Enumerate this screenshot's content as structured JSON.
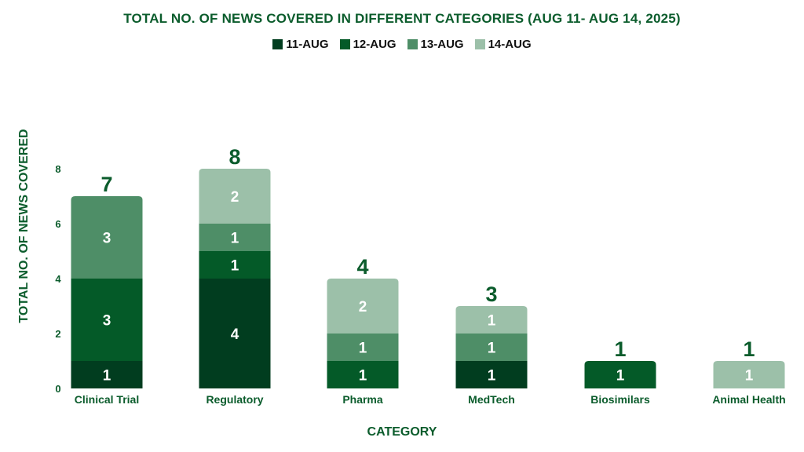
{
  "chart_data": {
    "type": "bar",
    "stacked": true,
    "title": "TOTAL NO. OF NEWS COVERED IN DIFFERENT CATEGORIES (AUG 11- AUG 14, 2025)",
    "xlabel": "CATEGORY",
    "ylabel": "TOTAL  NO. OF NEWS COVERED",
    "ylim": [
      0,
      8
    ],
    "yticks": [
      0,
      2,
      4,
      6,
      8
    ],
    "grid": false,
    "legend_position": "top-center",
    "categories": [
      "Clinical Trial",
      "Regulatory",
      "Pharma",
      "MedTech",
      "Biosimilars",
      "Animal Health"
    ],
    "series": [
      {
        "name": "11-AUG",
        "color": "#013d1f",
        "values": [
          1,
          4,
          0,
          1,
          0,
          0
        ]
      },
      {
        "name": "12-AUG",
        "color": "#045a28",
        "values": [
          3,
          1,
          1,
          0,
          1,
          0
        ]
      },
      {
        "name": "13-AUG",
        "color": "#4e8e67",
        "values": [
          3,
          1,
          1,
          1,
          0,
          0
        ]
      },
      {
        "name": "14-AUG",
        "color": "#9cc0a9",
        "values": [
          0,
          2,
          2,
          1,
          0,
          1
        ]
      }
    ],
    "totals": [
      7,
      8,
      4,
      3,
      1,
      1
    ]
  }
}
